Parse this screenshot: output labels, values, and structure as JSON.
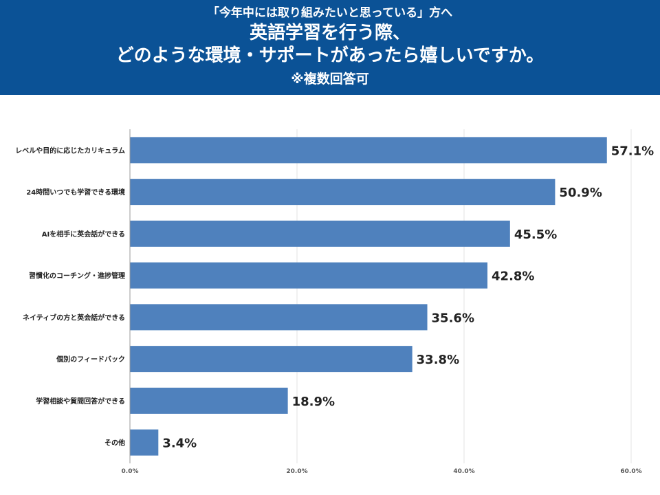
{
  "header": {
    "subtitle": "「今年中には取り組みたいと思っている」方へ",
    "title_line1": "英語学習を行う際、",
    "title_line2": "どのような環境・サポートがあったら嬉しいですか。",
    "note": "※複数回答可"
  },
  "colors": {
    "header_bg": "#0b5296",
    "bar": "#4f81bd",
    "grid": "#e3e3e3",
    "axis": "#999999"
  },
  "chart_data": {
    "type": "bar",
    "orientation": "horizontal",
    "categories": [
      "レベルや目的に応じたカリキュラム",
      "24時間いつでも学習できる環境",
      "AIを相手に英会話ができる",
      "習慣化のコーチング・進捗管理",
      "ネイティブの方と英会話ができる",
      "個別のフィードバック",
      "学習相談や質問回答ができる",
      "その他"
    ],
    "values": [
      57.1,
      50.9,
      45.5,
      42.8,
      35.6,
      33.8,
      18.9,
      3.4
    ],
    "value_labels": [
      "57.1%",
      "50.9%",
      "45.5%",
      "42.8%",
      "35.6%",
      "33.8%",
      "18.9%",
      "3.4%"
    ],
    "xlim": [
      0,
      60
    ],
    "ticks": [
      0,
      20,
      40,
      60
    ],
    "tick_labels": [
      "0.0%",
      "20.0%",
      "40.0%",
      "60.0%"
    ],
    "grid": true,
    "legend": "none"
  }
}
